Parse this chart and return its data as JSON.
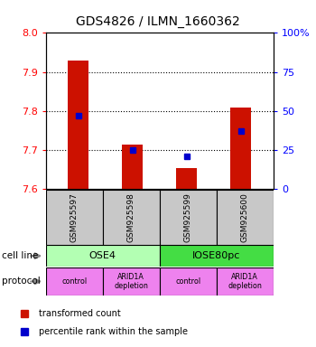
{
  "title": "GDS4826 / ILMN_1660362",
  "samples": [
    "GSM925597",
    "GSM925598",
    "GSM925599",
    "GSM925600"
  ],
  "red_values": [
    7.93,
    7.715,
    7.655,
    7.81
  ],
  "blue_percentiles": [
    47,
    25,
    21,
    37
  ],
  "y_min": 7.6,
  "y_max": 8.0,
  "y_ticks_left": [
    7.6,
    7.7,
    7.8,
    7.9,
    8.0
  ],
  "y_ticks_right_vals": [
    0,
    25,
    50,
    75,
    100
  ],
  "y_ticks_right_labels": [
    "0",
    "25",
    "50",
    "75",
    "100%"
  ],
  "cell_lines": [
    {
      "name": "OSE4",
      "start": 0,
      "end": 2,
      "color": "#b3ffb3"
    },
    {
      "name": "IOSE80pc",
      "start": 2,
      "end": 4,
      "color": "#44dd44"
    }
  ],
  "protocols": [
    {
      "label": "control",
      "color": "#ee82ee"
    },
    {
      "label": "ARID1A\ndepletion",
      "color": "#ee82ee"
    },
    {
      "label": "control",
      "color": "#ee82ee"
    },
    {
      "label": "ARID1A\ndepletion",
      "color": "#ee82ee"
    }
  ],
  "sample_box_color": "#c8c8c8",
  "bar_color": "#cc1100",
  "dot_color": "#0000cc",
  "grid_lines": [
    7.7,
    7.8,
    7.9
  ],
  "legend_items": [
    {
      "color": "#cc1100",
      "label": "transformed count"
    },
    {
      "color": "#0000cc",
      "label": "percentile rank within the sample"
    }
  ],
  "label_cell_line": "cell line",
  "label_protocol": "protocol"
}
